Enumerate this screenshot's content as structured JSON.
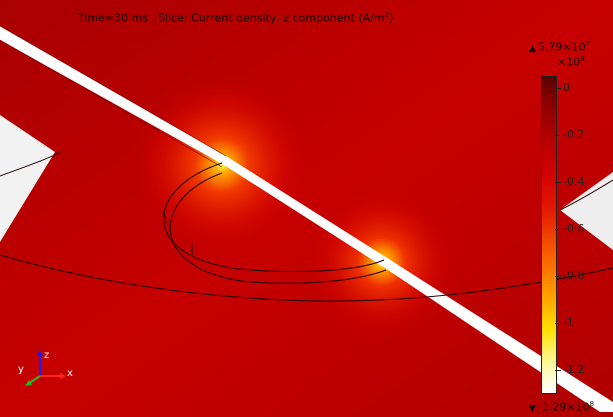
{
  "plot": {
    "time_label": "Time=30 ms",
    "slice_label": "Slice: Current density, z component (A/m",
    "slice_unit_sup": "2",
    "slice_label_end": ")"
  },
  "colorbar": {
    "max_value": "5.79×10",
    "max_exp": "7",
    "min_value": "-1.29×10",
    "min_exp": "8",
    "scale": "×10",
    "scale_exp": "8",
    "ticks": [
      "0",
      "-0.2",
      "-0.4",
      "-0.6",
      "-0.8",
      "-1",
      "-1.2"
    ],
    "colors": [
      "#5a0000",
      "#b00000",
      "#e51900",
      "#ff7a00",
      "#ffe000",
      "#ffffff"
    ]
  },
  "axes": {
    "x": "x",
    "y": "y",
    "z": "z"
  }
}
